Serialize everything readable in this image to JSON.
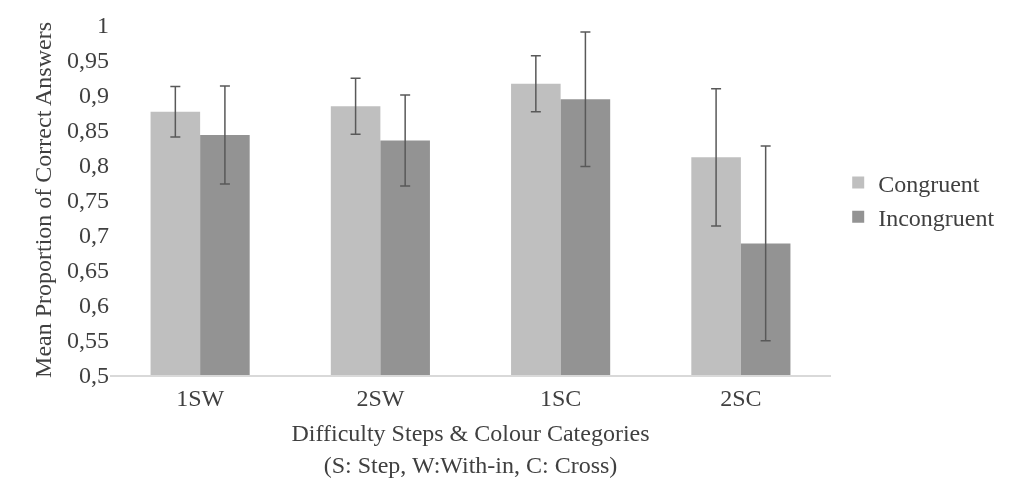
{
  "chart_data": {
    "type": "bar",
    "xlabel": "Difficulty Steps & Colour Categories\n(S: Step, W:With-in, C: Cross)",
    "ylabel": "Mean Proportion of Correct Answers",
    "categories": [
      "1SW",
      "2SW",
      "1SC",
      "2SC"
    ],
    "series": [
      {
        "name": "Congruent",
        "color": "#bfbfbf",
        "values": [
          0.876,
          0.884,
          0.916,
          0.811
        ],
        "errors": [
          0.036,
          0.04,
          0.04,
          0.098
        ]
      },
      {
        "name": "Incongruent",
        "color": "#939393",
        "values": [
          0.843,
          0.835,
          0.894,
          0.688
        ],
        "errors": [
          0.07,
          0.065,
          0.096,
          0.139
        ]
      }
    ],
    "ylim": [
      0.5,
      1
    ],
    "yticks": [
      {
        "value": 0.5,
        "label": "0,5"
      },
      {
        "value": 0.55,
        "label": "0,55"
      },
      {
        "value": 0.6,
        "label": "0,6"
      },
      {
        "value": 0.65,
        "label": "0,65"
      },
      {
        "value": 0.7,
        "label": "0,7"
      },
      {
        "value": 0.75,
        "label": "0,75"
      },
      {
        "value": 0.8,
        "label": "0,8"
      },
      {
        "value": 0.85,
        "label": "0,85"
      },
      {
        "value": 0.9,
        "label": "0,9"
      },
      {
        "value": 0.95,
        "label": "0,95"
      },
      {
        "value": 1,
        "label": "1"
      }
    ],
    "legend": "right"
  }
}
